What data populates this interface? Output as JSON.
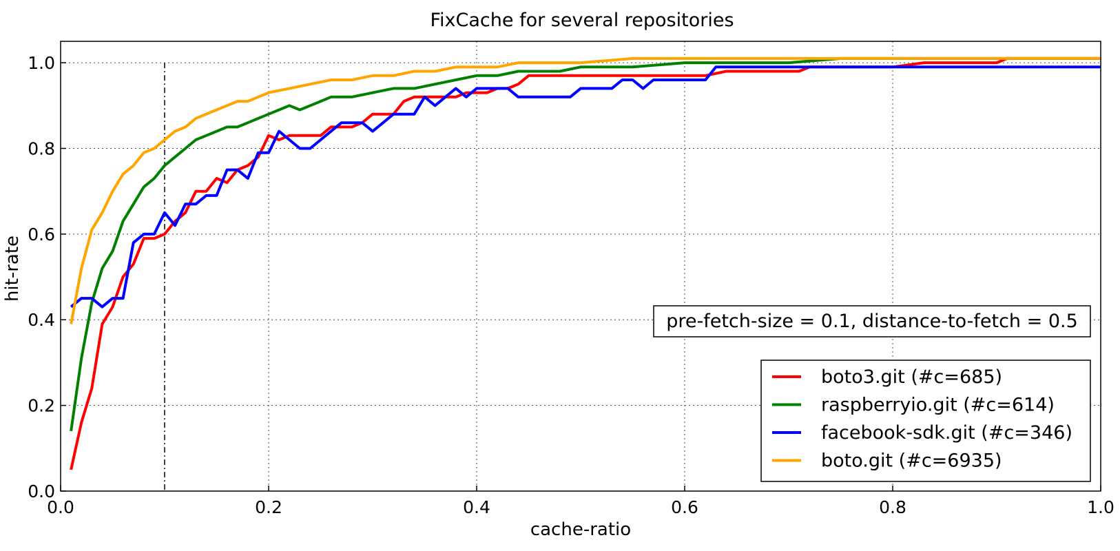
{
  "chart_data": {
    "type": "line",
    "title": "FixCache for several repositories",
    "xlabel": "cache-ratio",
    "ylabel": "hit-rate",
    "xlim": [
      0.0,
      1.0
    ],
    "ylim": [
      0.0,
      1.05
    ],
    "xticks": [
      "0.0",
      "0.2",
      "0.4",
      "0.6",
      "0.8",
      "1.0"
    ],
    "yticks": [
      "0.0",
      "0.2",
      "0.4",
      "0.6",
      "0.8",
      "1.0"
    ],
    "grid": true,
    "legend_position": "lower-right",
    "annotation": "pre-fetch-size = 0.1, distance-to-fetch = 0.5",
    "vertical_marker_x": 0.1,
    "series": [
      {
        "name": "boto3.git (#c=685)",
        "color": "#ff0000",
        "x": [
          0.01,
          0.02,
          0.03,
          0.04,
          0.05,
          0.06,
          0.07,
          0.08,
          0.09,
          0.1,
          0.11,
          0.12,
          0.13,
          0.14,
          0.15,
          0.16,
          0.17,
          0.18,
          0.19,
          0.2,
          0.21,
          0.22,
          0.23,
          0.24,
          0.25,
          0.26,
          0.27,
          0.28,
          0.29,
          0.3,
          0.31,
          0.32,
          0.33,
          0.34,
          0.35,
          0.36,
          0.37,
          0.38,
          0.39,
          0.4,
          0.41,
          0.42,
          0.43,
          0.44,
          0.45,
          0.47,
          0.5,
          0.55,
          0.6,
          0.62,
          0.64,
          0.66,
          0.68,
          0.71,
          0.72,
          0.76,
          0.8,
          0.83,
          0.86,
          0.9,
          0.91,
          1.0
        ],
        "y": [
          0.05,
          0.16,
          0.24,
          0.39,
          0.43,
          0.5,
          0.53,
          0.59,
          0.59,
          0.6,
          0.63,
          0.65,
          0.7,
          0.7,
          0.73,
          0.72,
          0.75,
          0.76,
          0.78,
          0.83,
          0.82,
          0.83,
          0.83,
          0.83,
          0.83,
          0.85,
          0.85,
          0.85,
          0.86,
          0.88,
          0.88,
          0.88,
          0.91,
          0.92,
          0.92,
          0.92,
          0.92,
          0.92,
          0.93,
          0.93,
          0.93,
          0.94,
          0.94,
          0.95,
          0.97,
          0.97,
          0.97,
          0.97,
          0.97,
          0.97,
          0.98,
          0.98,
          0.98,
          0.98,
          0.99,
          0.99,
          0.99,
          1.0,
          1.0,
          1.0,
          1.01,
          1.01
        ]
      },
      {
        "name": "raspberryio.git (#c=614)",
        "color": "#008000",
        "x": [
          0.01,
          0.02,
          0.03,
          0.04,
          0.05,
          0.06,
          0.07,
          0.08,
          0.09,
          0.1,
          0.11,
          0.12,
          0.13,
          0.14,
          0.15,
          0.16,
          0.17,
          0.18,
          0.19,
          0.2,
          0.21,
          0.22,
          0.23,
          0.24,
          0.25,
          0.26,
          0.27,
          0.28,
          0.3,
          0.32,
          0.34,
          0.36,
          0.38,
          0.4,
          0.42,
          0.44,
          0.46,
          0.48,
          0.5,
          0.52,
          0.55,
          0.6,
          0.65,
          0.7,
          0.75,
          0.8,
          1.0
        ],
        "y": [
          0.14,
          0.31,
          0.44,
          0.52,
          0.56,
          0.63,
          0.67,
          0.71,
          0.73,
          0.76,
          0.78,
          0.8,
          0.82,
          0.83,
          0.84,
          0.85,
          0.85,
          0.86,
          0.87,
          0.88,
          0.89,
          0.9,
          0.89,
          0.9,
          0.91,
          0.92,
          0.92,
          0.92,
          0.93,
          0.94,
          0.94,
          0.95,
          0.96,
          0.97,
          0.97,
          0.98,
          0.98,
          0.98,
          0.99,
          0.99,
          0.99,
          1.0,
          1.0,
          1.0,
          1.01,
          1.01,
          1.01
        ]
      },
      {
        "name": "facebook-sdk.git (#c=346)",
        "color": "#0000ff",
        "x": [
          0.01,
          0.02,
          0.03,
          0.04,
          0.05,
          0.06,
          0.07,
          0.08,
          0.09,
          0.1,
          0.11,
          0.12,
          0.13,
          0.14,
          0.15,
          0.16,
          0.17,
          0.18,
          0.19,
          0.2,
          0.21,
          0.22,
          0.23,
          0.24,
          0.25,
          0.26,
          0.27,
          0.28,
          0.29,
          0.3,
          0.31,
          0.32,
          0.33,
          0.34,
          0.35,
          0.36,
          0.37,
          0.38,
          0.39,
          0.4,
          0.41,
          0.42,
          0.43,
          0.44,
          0.45,
          0.46,
          0.47,
          0.48,
          0.49,
          0.5,
          0.51,
          0.52,
          0.53,
          0.54,
          0.55,
          0.56,
          0.57,
          0.58,
          0.59,
          0.6,
          0.61,
          0.62,
          0.63,
          0.65,
          0.7,
          0.8,
          1.0
        ],
        "y": [
          0.43,
          0.45,
          0.45,
          0.43,
          0.45,
          0.45,
          0.58,
          0.6,
          0.6,
          0.65,
          0.62,
          0.67,
          0.67,
          0.69,
          0.69,
          0.75,
          0.75,
          0.73,
          0.79,
          0.79,
          0.84,
          0.82,
          0.8,
          0.8,
          0.82,
          0.84,
          0.86,
          0.86,
          0.86,
          0.84,
          0.86,
          0.88,
          0.88,
          0.88,
          0.92,
          0.9,
          0.92,
          0.94,
          0.92,
          0.94,
          0.94,
          0.94,
          0.94,
          0.92,
          0.92,
          0.92,
          0.92,
          0.92,
          0.92,
          0.94,
          0.94,
          0.94,
          0.94,
          0.96,
          0.96,
          0.94,
          0.96,
          0.96,
          0.96,
          0.96,
          0.96,
          0.96,
          0.99,
          0.99,
          0.99,
          0.99,
          0.99
        ]
      },
      {
        "name": "boto.git (#c=6935)",
        "color": "#ffa500",
        "x": [
          0.01,
          0.02,
          0.03,
          0.04,
          0.05,
          0.06,
          0.07,
          0.08,
          0.09,
          0.1,
          0.11,
          0.12,
          0.13,
          0.14,
          0.15,
          0.16,
          0.17,
          0.18,
          0.19,
          0.2,
          0.22,
          0.24,
          0.26,
          0.28,
          0.3,
          0.32,
          0.34,
          0.36,
          0.38,
          0.4,
          0.42,
          0.44,
          0.46,
          0.48,
          0.5,
          0.55,
          0.6,
          0.7,
          0.8,
          1.0
        ],
        "y": [
          0.39,
          0.52,
          0.61,
          0.65,
          0.7,
          0.74,
          0.76,
          0.79,
          0.8,
          0.82,
          0.84,
          0.85,
          0.87,
          0.88,
          0.89,
          0.9,
          0.91,
          0.91,
          0.92,
          0.93,
          0.94,
          0.95,
          0.96,
          0.96,
          0.97,
          0.97,
          0.98,
          0.98,
          0.99,
          0.99,
          0.99,
          1.0,
          1.0,
          1.0,
          1.0,
          1.01,
          1.01,
          1.01,
          1.01,
          1.01
        ]
      }
    ]
  }
}
